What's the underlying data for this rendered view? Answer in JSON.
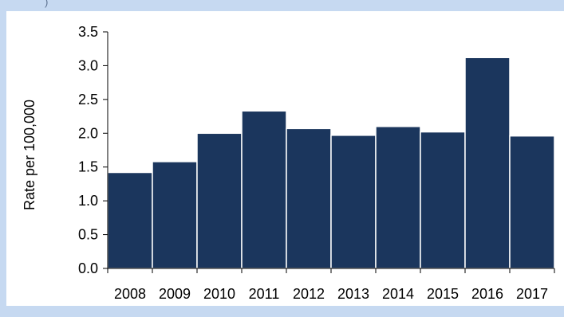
{
  "chart_data": {
    "type": "bar",
    "title": "",
    "xlabel": "",
    "ylabel": "Rate per 100,000",
    "categories": [
      "2008",
      "2009",
      "2010",
      "2011",
      "2012",
      "2013",
      "2014",
      "2015",
      "2016",
      "2017"
    ],
    "values": [
      1.42,
      1.58,
      2.0,
      2.33,
      2.07,
      1.97,
      2.1,
      2.02,
      3.12,
      1.96
    ],
    "ylim": [
      0,
      3.5
    ],
    "yticks": [
      "0.0",
      "0.5",
      "1.0",
      "1.5",
      "2.0",
      "2.5",
      "3.0",
      "3.5"
    ],
    "grid": false,
    "legend": "none",
    "bar_color": "#1b365d",
    "bar_edge_color": "#ffffff"
  },
  "colors": {
    "frame_background": "#c6d9f1",
    "plot_background": "#ffffff",
    "axis_color": "#000000"
  }
}
